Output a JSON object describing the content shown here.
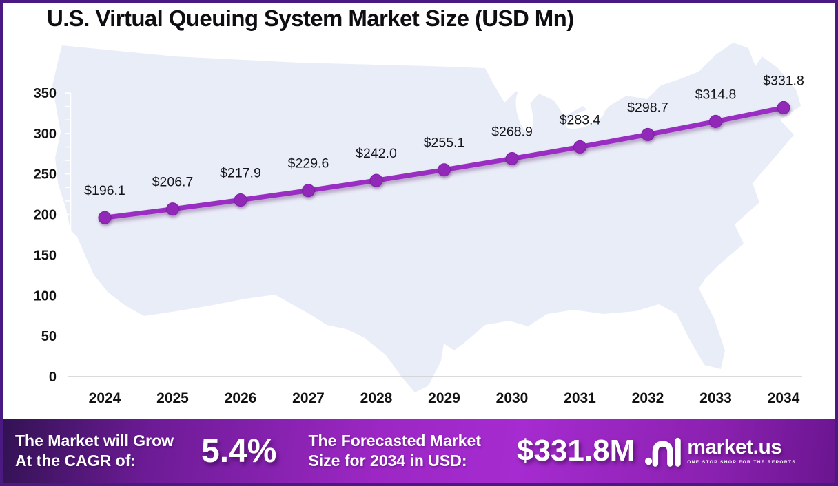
{
  "title": "U.S. Virtual Queuing System Market Size (USD Mn)",
  "chart_data": {
    "type": "line",
    "title": "U.S. Virtual Queuing System Market Size (USD Mn)",
    "x": [
      2024,
      2025,
      2026,
      2027,
      2028,
      2029,
      2030,
      2031,
      2032,
      2033,
      2034
    ],
    "series": [
      {
        "name": "U.S. Virtual Queuing System Market Size (USD Mn)",
        "values": [
          196.1,
          206.7,
          217.9,
          229.6,
          242.0,
          255.1,
          268.9,
          283.4,
          298.7,
          314.8,
          331.8
        ]
      }
    ],
    "point_labels": [
      "$196.1",
      "$206.7",
      "$217.9",
      "$229.6",
      "$242.0",
      "$255.1",
      "$268.9",
      "$283.4",
      "$298.7",
      "$314.8",
      "$331.8"
    ],
    "yticks": [
      0,
      50,
      100,
      150,
      200,
      250,
      300,
      350
    ],
    "ylim": [
      0,
      350
    ],
    "xlabel": "",
    "ylabel": "",
    "grid": false,
    "legend": "none",
    "line_color": "#9a2ec2",
    "marker_color": "#9128b8",
    "marker_edge_color": "#7d1fa6",
    "axis_line_color": "#cfcfcf",
    "tick_color": "#ffffff",
    "label_color": "#111111",
    "map_color": "#e9edf7"
  },
  "banner": {
    "cagr_label_line1": "The Market will Grow",
    "cagr_label_line2": "At the CAGR of:",
    "cagr_value": "5.4%",
    "forecast_label_line1": "The Forecasted Market",
    "forecast_label_line2": "Size for 2034 in USD:",
    "forecast_value": "$331.8M",
    "logo_name": "market.us",
    "logo_tagline": "ONE STOP SHOP FOR THE REPORTS"
  }
}
